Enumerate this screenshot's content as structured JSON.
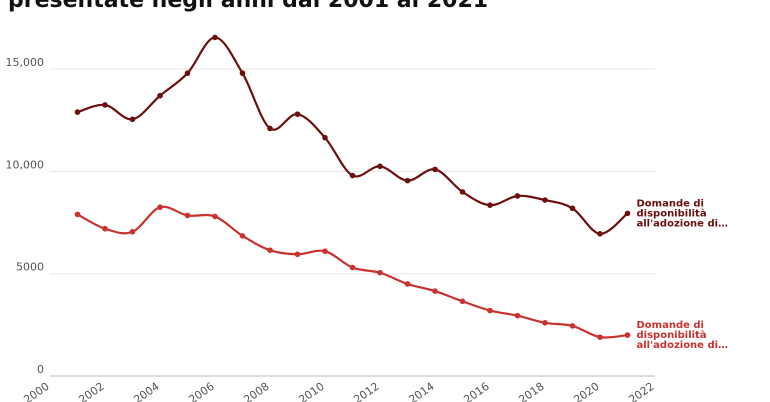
{
  "title": "presentate negli anni dal 2001 al 2021",
  "colors": {
    "series_dark": "#6b0f0f",
    "series_red": "#c8322f",
    "grid": "#e6e6e6",
    "axis": "#bbbbbb"
  },
  "chart_data": {
    "type": "line",
    "title": "presentate negli anni dal 2001 al 2021",
    "xlabel": "",
    "ylabel": "",
    "xlim": [
      2000,
      2022
    ],
    "ylim": [
      0,
      17500
    ],
    "x_ticks": [
      "2000",
      "2002",
      "2004",
      "2006",
      "2008",
      "2010",
      "2012",
      "2014",
      "2016",
      "2018",
      "2020",
      "2022"
    ],
    "y_ticks": [
      "0",
      "5000",
      "10,000",
      "15,000"
    ],
    "y_tick_values": [
      0,
      5000,
      10000,
      15000
    ],
    "grid": "horizontal",
    "legend": "end-of-line labels",
    "x": [
      2001,
      2002,
      2003,
      2004,
      2005,
      2006,
      2007,
      2008,
      2009,
      2010,
      2011,
      2012,
      2013,
      2014,
      2015,
      2016,
      2017,
      2018,
      2019,
      2020,
      2021
    ],
    "series": [
      {
        "name": "Domande di disponibilità all'adozione di…",
        "label_lines": [
          "Domande di",
          "disponibilità",
          "all'adozione di…"
        ],
        "color": "#6b0f0f",
        "values": [
          12900,
          13250,
          12550,
          13700,
          14800,
          16550,
          14800,
          12100,
          12800,
          11650,
          9800,
          10250,
          9550,
          10100,
          9000,
          8350,
          8800,
          8600,
          8200,
          6950,
          7950
        ]
      },
      {
        "name": "Domande di disponibilità all'adozione di…",
        "label_lines": [
          "Domande di",
          "disponibilità",
          "all'adozione di…"
        ],
        "color": "#c8322f",
        "values": [
          7900,
          7200,
          7050,
          8250,
          7850,
          7800,
          6850,
          6150,
          5950,
          6100,
          5300,
          5050,
          4500,
          4150,
          3650,
          3200,
          2950,
          2600,
          2450,
          1900,
          2000
        ]
      }
    ]
  }
}
